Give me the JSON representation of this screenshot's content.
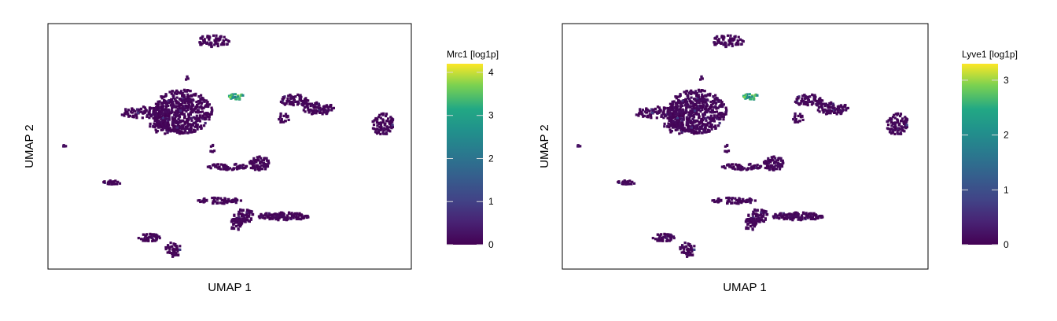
{
  "chart_data": [
    {
      "type": "heatmap",
      "subtype": "umap-hexbin-embedding",
      "xlabel": "UMAP 1",
      "ylabel": "UMAP 2",
      "legend": {
        "title": "Mrc1 [log1p]",
        "ticks": [
          "0",
          "1",
          "2",
          "3",
          "4"
        ],
        "range": [
          0,
          4.2
        ],
        "colormap": "viridis",
        "placement": "right"
      },
      "highlight_value": 3.8,
      "background_value": 0.1
    },
    {
      "type": "heatmap",
      "subtype": "umap-hexbin-embedding",
      "xlabel": "UMAP 1",
      "ylabel": "UMAP 2",
      "legend": {
        "title": "Lyve1 [log1p]",
        "ticks": [
          "0",
          "1",
          "2",
          "3"
        ],
        "range": [
          0,
          3.3
        ],
        "colormap": "viridis",
        "placement": "right"
      },
      "highlight_value": 3.0,
      "background_value": 0.05
    }
  ],
  "colors": {
    "viridis_low": "#440154",
    "viridis_high": "#fde725",
    "frame": "#000000"
  }
}
